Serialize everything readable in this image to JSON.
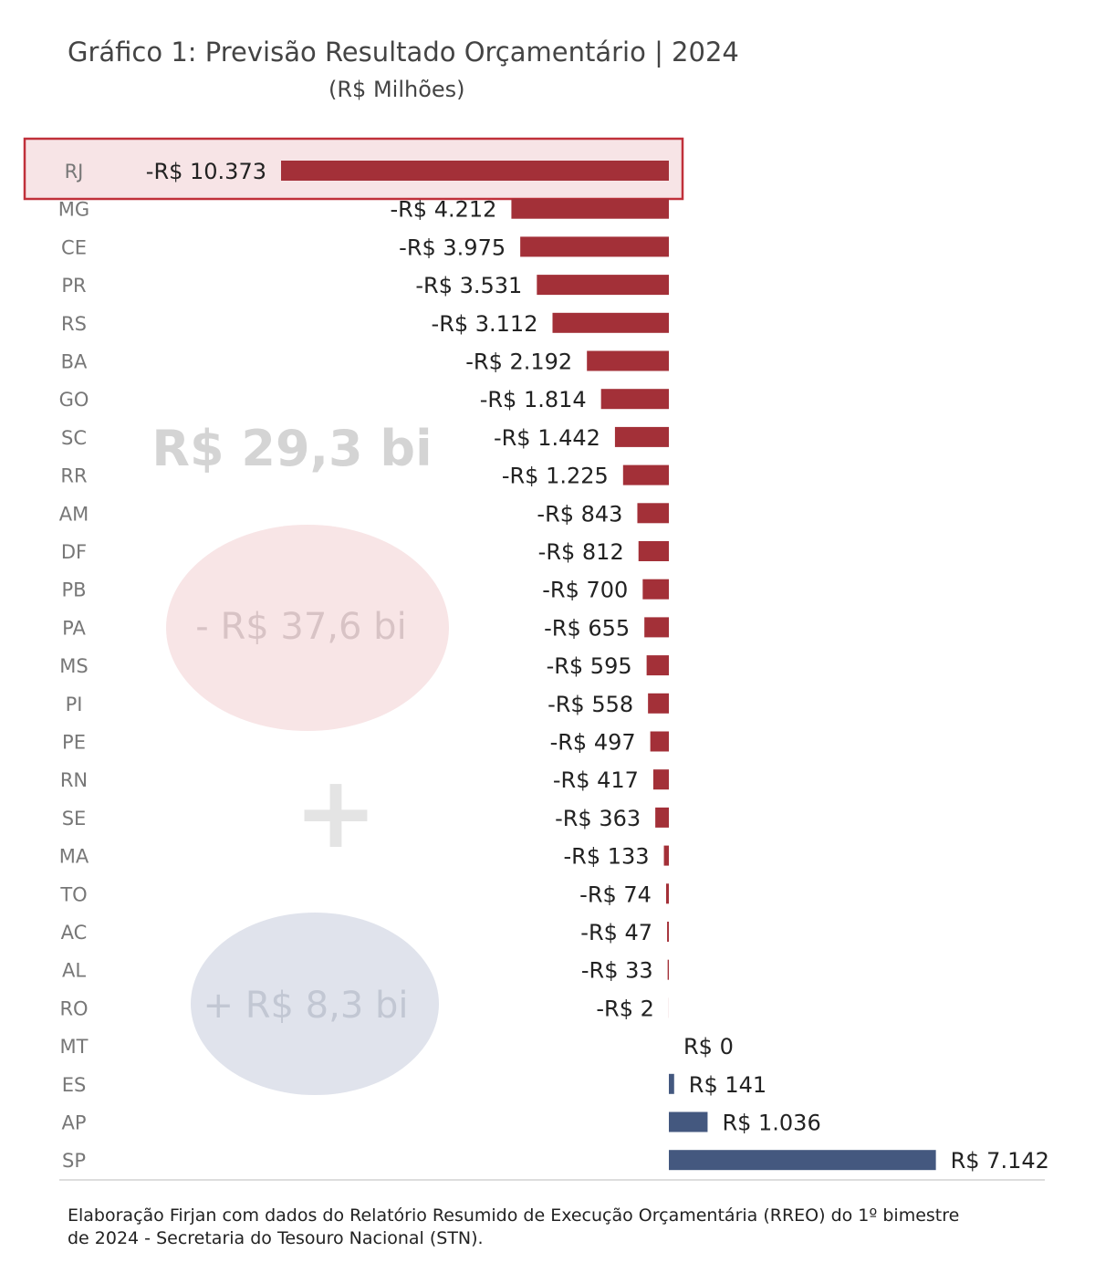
{
  "chart_data": {
    "type": "bar",
    "orientation": "horizontal",
    "title": "Gráfico 1: Previsão Resultado Orçamentário | 2024",
    "subtitle": "(R$ Milhões)",
    "categories": [
      "RJ",
      "MG",
      "CE",
      "PR",
      "RS",
      "BA",
      "GO",
      "SC",
      "RR",
      "AM",
      "DF",
      "PB",
      "PA",
      "MS",
      "PI",
      "PE",
      "RN",
      "SE",
      "MA",
      "TO",
      "AC",
      "AL",
      "RO",
      "MT",
      "ES",
      "AP",
      "SP"
    ],
    "values": [
      -10373,
      -4212,
      -3975,
      -3531,
      -3112,
      -2192,
      -1814,
      -1442,
      -1225,
      -843,
      -812,
      -700,
      -655,
      -595,
      -558,
      -497,
      -417,
      -363,
      -133,
      -74,
      -47,
      -33,
      -2,
      0,
      141,
      1036,
      7142
    ],
    "value_labels": [
      "-R$ 10.373",
      "-R$ 4.212",
      "-R$ 3.975",
      "-R$ 3.531",
      "-R$ 3.112",
      "-R$ 2.192",
      "-R$ 1.814",
      "-R$ 1.442",
      "-R$ 1.225",
      "-R$ 843",
      "-R$ 812",
      "-R$ 700",
      "-R$ 655",
      "-R$ 595",
      "-R$ 558",
      "-R$ 497",
      "-R$ 417",
      "-R$ 363",
      "-R$ 133",
      "-R$ 74",
      "-R$ 47",
      "-R$ 33",
      "-R$ 2",
      "R$ 0",
      "R$ 141",
      "R$ 1.036",
      "R$ 7.142"
    ],
    "highlight_category": "RJ",
    "colors": {
      "negative": "#a33038",
      "positive": "#44587f",
      "highlight_border": "#c0303a",
      "highlight_fill": "#f7e4e6"
    },
    "annotations": {
      "total": "R$ 29,3 bi",
      "negative_total": "- R$ 37,6 bi",
      "plus_sign": "+",
      "positive_total": "+ R$ 8,3 bi"
    }
  },
  "source_note": "Elaboração Firjan com dados do Relatório Resumido de Execução Orçamentária (RREO) do 1º bimestre de 2024 - Secretaria do Tesouro Nacional (STN)."
}
